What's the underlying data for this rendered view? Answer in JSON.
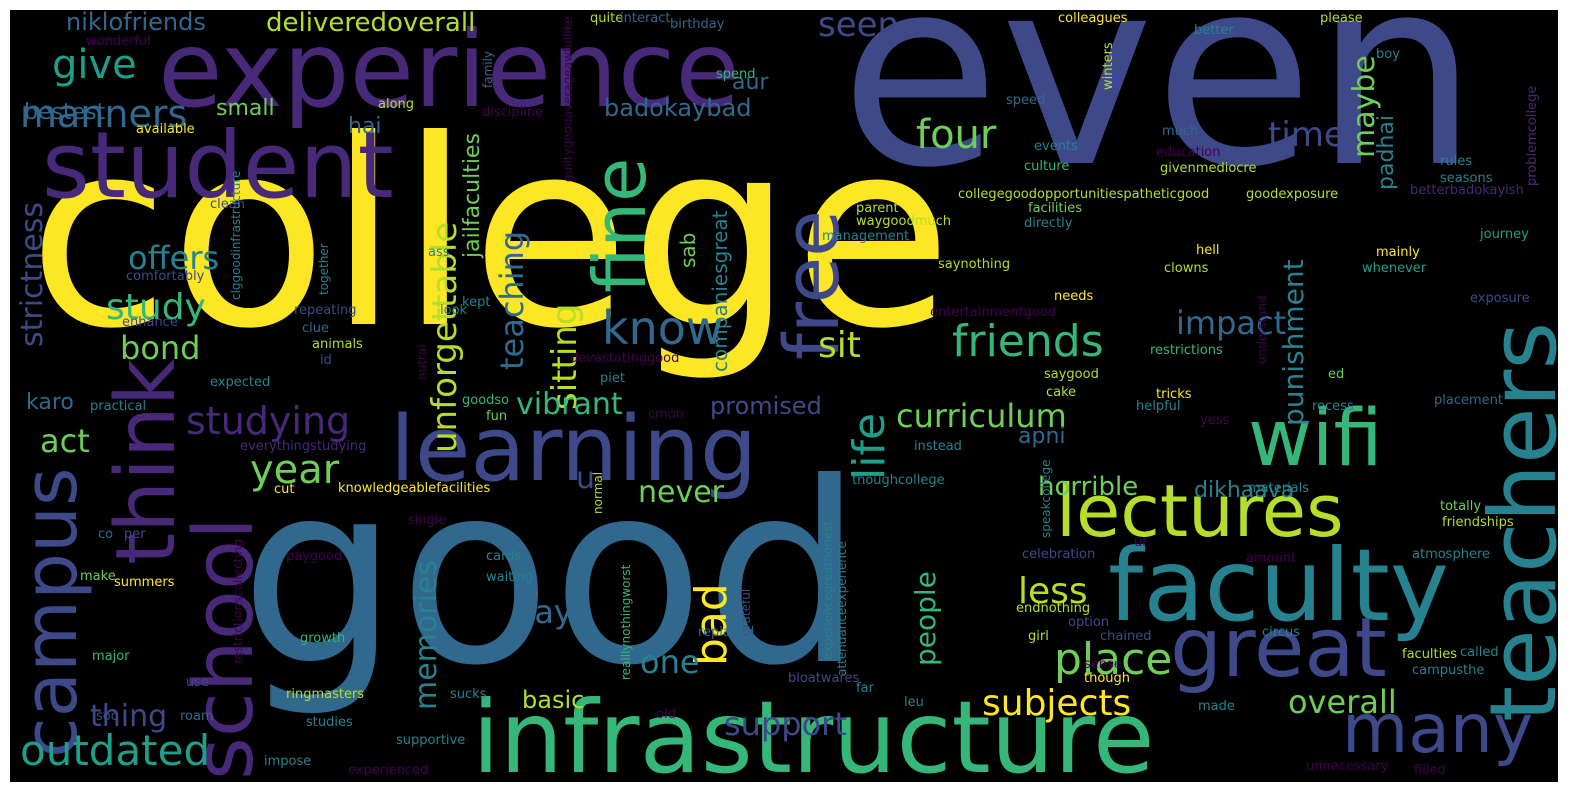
{
  "palette": {
    "background": "#000000",
    "yellow": "#fde725",
    "lime": "#b5de2b",
    "green": "#6ece58",
    "teal_green": "#35b779",
    "teal": "#1f9e89",
    "blue_teal": "#26828e",
    "blue": "#31688e",
    "indigo": "#3e4989",
    "purple": "#482878",
    "dark_purple": "#440154"
  },
  "words": [
    {
      "text": "college",
      "color": "#fde725"
    },
    {
      "text": "even",
      "color": "#3e4989"
    },
    {
      "text": "good",
      "color": "#31688e"
    },
    {
      "text": "experience",
      "color": "#482878"
    },
    {
      "text": "student",
      "color": "#482878"
    },
    {
      "text": "infrastructure",
      "color": "#35b779"
    },
    {
      "text": "teachers",
      "color": "#26828e"
    },
    {
      "text": "faculty",
      "color": "#26828e"
    },
    {
      "text": "learning",
      "color": "#3e4989"
    },
    {
      "text": "lectures",
      "color": "#b5de2b"
    },
    {
      "text": "think",
      "color": "#482878"
    },
    {
      "text": "school",
      "color": "#482878"
    },
    {
      "text": "campus",
      "color": "#3e4989"
    },
    {
      "text": "fine",
      "color": "#35b779"
    },
    {
      "text": "free",
      "color": "#3e4989"
    },
    {
      "text": "great",
      "color": "#3e4989"
    },
    {
      "text": "wifi",
      "color": "#35b779"
    },
    {
      "text": "many",
      "color": "#3e4989"
    },
    {
      "text": "know",
      "color": "#31688e"
    },
    {
      "text": "outdated",
      "color": "#1f9e89"
    },
    {
      "text": "unforgettable",
      "color": "#b5de2b"
    },
    {
      "text": "life",
      "color": "#1f9e89"
    },
    {
      "text": "friends",
      "color": "#35b779"
    },
    {
      "text": "bad",
      "color": "#fde725"
    },
    {
      "text": "place",
      "color": "#6ece58"
    },
    {
      "text": "subjects",
      "color": "#fde725"
    },
    {
      "text": "overall",
      "color": "#6ece58"
    },
    {
      "text": "curriculum",
      "color": "#6ece58"
    },
    {
      "text": "year",
      "color": "#6ece58"
    },
    {
      "text": "studying",
      "color": "#482878"
    },
    {
      "text": "give",
      "color": "#1f9e89"
    },
    {
      "text": "manners",
      "color": "#31688e"
    },
    {
      "text": "study",
      "color": "#35b779"
    },
    {
      "text": "bond",
      "color": "#6ece58"
    },
    {
      "text": "offers",
      "color": "#26828e"
    },
    {
      "text": "act",
      "color": "#6ece58"
    },
    {
      "text": "sitting",
      "color": "#b5de2b"
    },
    {
      "text": "sit",
      "color": "#b5de2b"
    },
    {
      "text": "four",
      "color": "#6ece58"
    },
    {
      "text": "time",
      "color": "#3e4989"
    },
    {
      "text": "impact",
      "color": "#31688e"
    },
    {
      "text": "maybe",
      "color": "#6ece58"
    },
    {
      "text": "teaching",
      "color": "#31688e"
    },
    {
      "text": "memories",
      "color": "#26828e"
    },
    {
      "text": "people",
      "color": "#35b779"
    },
    {
      "text": "support",
      "color": "#3e4989"
    },
    {
      "text": "vibrant",
      "color": "#35b779"
    },
    {
      "text": "strictness",
      "color": "#3e4989"
    },
    {
      "text": "punishment",
      "color": "#26828e"
    },
    {
      "text": "less",
      "color": "#b5de2b"
    },
    {
      "text": "horrible",
      "color": "#6ece58"
    },
    {
      "text": "never",
      "color": "#6ece58"
    },
    {
      "text": "pay",
      "color": "#31688e"
    },
    {
      "text": "one",
      "color": "#26828e"
    },
    {
      "text": "thing",
      "color": "#3e4989"
    },
    {
      "text": "basic",
      "color": "#b5de2b"
    },
    {
      "text": "seen",
      "color": "#3e4989"
    },
    {
      "text": "deliveredoverall",
      "color": "#b5de2b"
    },
    {
      "text": "niklofriends",
      "color": "#31688e"
    },
    {
      "text": "bestest",
      "color": "#31688e"
    },
    {
      "text": "small",
      "color": "#6ece58"
    },
    {
      "text": "hai",
      "color": "#31688e"
    },
    {
      "text": "badokaybad",
      "color": "#31688e"
    },
    {
      "text": "promised",
      "color": "#3e4989"
    },
    {
      "text": "dikhaava",
      "color": "#26828e"
    },
    {
      "text": "apni",
      "color": "#31688e"
    },
    {
      "text": "padhai",
      "color": "#26828e"
    },
    {
      "text": "karo",
      "color": "#31688e"
    },
    {
      "text": "jailfaculties",
      "color": "#6ece58"
    },
    {
      "text": "companiesgreat",
      "color": "#26828e"
    },
    {
      "text": "sab",
      "color": "#6ece58"
    },
    {
      "text": "u",
      "color": "#3e4989"
    },
    {
      "text": "aur",
      "color": "#31688e"
    },
    {
      "text": "collegegoodopportunitiespatheticgood",
      "color": "#b5de2b"
    },
    {
      "text": "knowledgeablefacilities",
      "color": "#fde725"
    },
    {
      "text": "waygoodmuch",
      "color": "#b5de2b"
    },
    {
      "text": "facilities",
      "color": "#6ece58"
    },
    {
      "text": "directly",
      "color": "#26828e"
    },
    {
      "text": "saynothing",
      "color": "#b5de2b"
    },
    {
      "text": "hell",
      "color": "#fde725"
    },
    {
      "text": "clowns",
      "color": "#b5de2b"
    },
    {
      "text": "needs",
      "color": "#fde725"
    },
    {
      "text": "mainly",
      "color": "#fde725"
    },
    {
      "text": "whenever",
      "color": "#1f9e89"
    },
    {
      "text": "restrictions",
      "color": "#35b779"
    },
    {
      "text": "saygood",
      "color": "#b5de2b"
    },
    {
      "text": "cake",
      "color": "#b5de2b"
    },
    {
      "text": "tricks",
      "color": "#fde725"
    },
    {
      "text": "helpful",
      "color": "#26828e"
    },
    {
      "text": "available",
      "color": "#fde725"
    },
    {
      "text": "quite",
      "color": "#b5de2b"
    },
    {
      "text": "interact",
      "color": "#31688e"
    },
    {
      "text": "birthday",
      "color": "#31688e"
    },
    {
      "text": "colleagues",
      "color": "#fde725"
    },
    {
      "text": "better",
      "color": "#26828e"
    },
    {
      "text": "please",
      "color": "#b5de2b"
    },
    {
      "text": "boy",
      "color": "#26828e"
    },
    {
      "text": "winters",
      "color": "#b5de2b"
    },
    {
      "text": "wonderful",
      "color": "#440154"
    },
    {
      "text": "along",
      "color": "#b5de2b"
    },
    {
      "text": "discipline",
      "color": "#440154"
    },
    {
      "text": "guiltygoodaverageawfullike",
      "color": "#440154"
    },
    {
      "text": "family",
      "color": "#31688e"
    },
    {
      "text": "spend",
      "color": "#35b779"
    },
    {
      "text": "speed",
      "color": "#31688e"
    },
    {
      "text": "much",
      "color": "#31688e"
    },
    {
      "text": "events",
      "color": "#26828e"
    },
    {
      "text": "culture",
      "color": "#35b779"
    },
    {
      "text": "education",
      "color": "#440154"
    },
    {
      "text": "givenmediocre",
      "color": "#b5de2b"
    },
    {
      "text": "goodexposure",
      "color": "#b5de2b"
    },
    {
      "text": "rules",
      "color": "#26828e"
    },
    {
      "text": "seasons",
      "color": "#26828e"
    },
    {
      "text": "problemcollege",
      "color": "#482878"
    },
    {
      "text": "betterbadokayish",
      "color": "#482878"
    },
    {
      "text": "journey",
      "color": "#1f9e89"
    },
    {
      "text": "exposure",
      "color": "#3e4989"
    },
    {
      "text": "clean",
      "color": "#3e4989"
    },
    {
      "text": "clggoodinfrastructure",
      "color": "#26828e"
    },
    {
      "text": "comfortably",
      "color": "#3e4989"
    },
    {
      "text": "together",
      "color": "#26828e"
    },
    {
      "text": "enhance",
      "color": "#3e4989"
    },
    {
      "text": "repeating",
      "color": "#3e4989"
    },
    {
      "text": "clue",
      "color": "#31688e"
    },
    {
      "text": "animals",
      "color": "#b5de2b"
    },
    {
      "text": "id",
      "color": "#3e4989"
    },
    {
      "text": "expected",
      "color": "#26828e"
    },
    {
      "text": "practical",
      "color": "#26828e"
    },
    {
      "text": "everythingstudying",
      "color": "#482878"
    },
    {
      "text": "cut",
      "color": "#fde725"
    },
    {
      "text": "goodso",
      "color": "#35b779"
    },
    {
      "text": "fun",
      "color": "#6ece58"
    },
    {
      "text": "cmon",
      "color": "#440154"
    },
    {
      "text": "piet",
      "color": "#26828e"
    },
    {
      "text": "devastatinggood",
      "color": "#440154"
    },
    {
      "text": "nutral",
      "color": "#440154"
    },
    {
      "text": "look",
      "color": "#26828e"
    },
    {
      "text": "ass",
      "color": "#26828e"
    },
    {
      "text": "kept",
      "color": "#26828e"
    },
    {
      "text": "management",
      "color": "#26828e"
    },
    {
      "text": "parent",
      "color": "#b5de2b"
    },
    {
      "text": "entertainmentgood",
      "color": "#440154"
    },
    {
      "text": "understand",
      "color": "#440154"
    },
    {
      "text": "instead",
      "color": "#26828e"
    },
    {
      "text": "recess",
      "color": "#26828e"
    },
    {
      "text": "placement",
      "color": "#31688e"
    },
    {
      "text": "ed",
      "color": "#6ece58"
    },
    {
      "text": "yess",
      "color": "#440154"
    },
    {
      "text": "attendanceexperience",
      "color": "#26828e"
    },
    {
      "text": "experiencegreathonest",
      "color": "#26828e"
    },
    {
      "text": "thoughcollege",
      "color": "#26828e"
    },
    {
      "text": "speakcollege",
      "color": "#26828e"
    },
    {
      "text": "materials",
      "color": "#26828e"
    },
    {
      "text": "totally",
      "color": "#6ece58"
    },
    {
      "text": "friendships",
      "color": "#b5de2b"
    },
    {
      "text": "single",
      "color": "#440154"
    },
    {
      "text": "co",
      "color": "#31688e"
    },
    {
      "text": "per",
      "color": "#3e4989"
    },
    {
      "text": "normal",
      "color": "#b5de2b"
    },
    {
      "text": "paygood",
      "color": "#440154"
    },
    {
      "text": "cards",
      "color": "#26828e"
    },
    {
      "text": "waiting",
      "color": "#26828e"
    },
    {
      "text": "make",
      "color": "#6ece58"
    },
    {
      "text": "summers",
      "color": "#fde725"
    },
    {
      "text": "realllynothingworst",
      "color": "#35b779"
    },
    {
      "text": "grateful",
      "color": "#3e4989"
    },
    {
      "text": "celebration",
      "color": "#3e4989"
    },
    {
      "text": "amount",
      "color": "#440154"
    },
    {
      "text": "atmosphere",
      "color": "#26828e"
    },
    {
      "text": "ur",
      "color": "#440154"
    },
    {
      "text": "endnothing",
      "color": "#b5de2b"
    },
    {
      "text": "option",
      "color": "#3e4989"
    },
    {
      "text": "restrictionscollecting",
      "color": "#440154"
    },
    {
      "text": "growth",
      "color": "#35b779"
    },
    {
      "text": "replaced",
      "color": "#31688e"
    },
    {
      "text": "chained",
      "color": "#3e4989"
    },
    {
      "text": "circus",
      "color": "#26828e"
    },
    {
      "text": "girl",
      "color": "#b5de2b"
    },
    {
      "text": "sense",
      "color": "#440154"
    },
    {
      "text": "faculties",
      "color": "#b5de2b"
    },
    {
      "text": "called",
      "color": "#26828e"
    },
    {
      "text": "campusthe",
      "color": "#26828e"
    },
    {
      "text": "major",
      "color": "#35b779"
    },
    {
      "text": "use",
      "color": "#3e4989"
    },
    {
      "text": "soo",
      "color": "#3e4989"
    },
    {
      "text": "ringmasters",
      "color": "#b5de2b"
    },
    {
      "text": "studies",
      "color": "#26828e"
    },
    {
      "text": "sucks",
      "color": "#26828e"
    },
    {
      "text": "roam",
      "color": "#31688e"
    },
    {
      "text": "supportive",
      "color": "#26828e"
    },
    {
      "text": "impose",
      "color": "#26828e"
    },
    {
      "text": "experienced",
      "color": "#440154"
    },
    {
      "text": "old",
      "color": "#440154"
    },
    {
      "text": "bloatwares",
      "color": "#3e4989"
    },
    {
      "text": "far",
      "color": "#26828e"
    },
    {
      "text": "leu",
      "color": "#26828e"
    },
    {
      "text": "though",
      "color": "#fde725"
    },
    {
      "text": "made",
      "color": "#26828e"
    },
    {
      "text": "unnecessary",
      "color": "#440154"
    },
    {
      "text": "filled",
      "color": "#440154"
    }
  ]
}
